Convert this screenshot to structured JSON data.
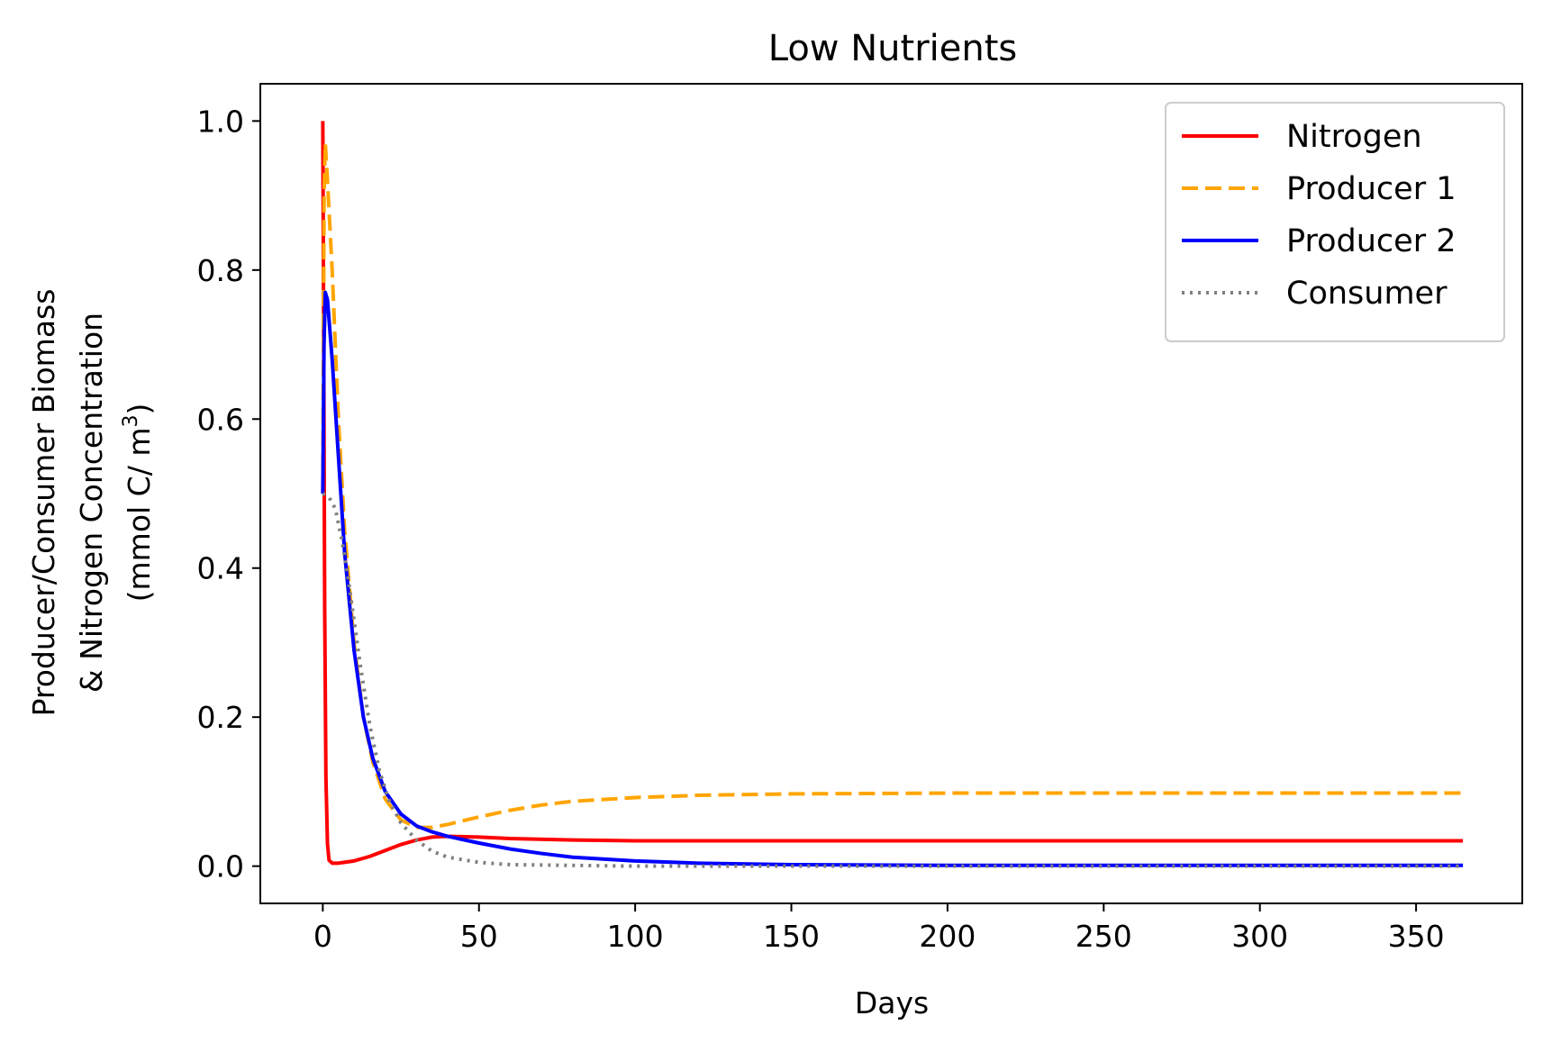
{
  "chart_data": {
    "type": "line",
    "title": "Low Nutrients",
    "xlabel": "Days",
    "ylabel_lines": [
      "Producer/Consumer Biomass",
      "& Nitrogen Concentration"
    ],
    "ylabel_unit": {
      "prefix": "(mmol C/ m",
      "sup": "3",
      "suffix": ")"
    },
    "xlim": [
      -20,
      384
    ],
    "ylim": [
      -0.05,
      1.05
    ],
    "xticks": [
      0,
      50,
      100,
      150,
      200,
      250,
      300,
      350
    ],
    "xtick_labels": [
      "0",
      "50",
      "100",
      "150",
      "200",
      "250",
      "300",
      "350"
    ],
    "yticks": [
      0.0,
      0.2,
      0.4,
      0.6,
      0.8,
      1.0
    ],
    "ytick_labels": [
      "0.0",
      "0.2",
      "0.4",
      "0.6",
      "0.8",
      "1.0"
    ],
    "grid": false,
    "legend_position": "top-right",
    "series": [
      {
        "name": "Nitrogen",
        "color": "#ff0000",
        "style": "solid",
        "points": [
          [
            0,
            1.0
          ],
          [
            0.3,
            0.7
          ],
          [
            0.6,
            0.35
          ],
          [
            1,
            0.12
          ],
          [
            1.5,
            0.03
          ],
          [
            2,
            0.008
          ],
          [
            3,
            0.004
          ],
          [
            5,
            0.004
          ],
          [
            10,
            0.007
          ],
          [
            15,
            0.013
          ],
          [
            20,
            0.021
          ],
          [
            25,
            0.029
          ],
          [
            30,
            0.035
          ],
          [
            35,
            0.039
          ],
          [
            40,
            0.04
          ],
          [
            50,
            0.039
          ],
          [
            60,
            0.037
          ],
          [
            80,
            0.035
          ],
          [
            100,
            0.034
          ],
          [
            150,
            0.034
          ],
          [
            200,
            0.034
          ],
          [
            250,
            0.034
          ],
          [
            300,
            0.034
          ],
          [
            365,
            0.034
          ]
        ]
      },
      {
        "name": "Producer 1",
        "color": "#ffa500",
        "style": "dashed",
        "points": [
          [
            0,
            0.5
          ],
          [
            0.4,
            0.9
          ],
          [
            0.8,
            0.97
          ],
          [
            1.5,
            0.92
          ],
          [
            3,
            0.8
          ],
          [
            5,
            0.6
          ],
          [
            7,
            0.45
          ],
          [
            10,
            0.3
          ],
          [
            13,
            0.2
          ],
          [
            16,
            0.14
          ],
          [
            20,
            0.09
          ],
          [
            25,
            0.062
          ],
          [
            30,
            0.052
          ],
          [
            35,
            0.052
          ],
          [
            40,
            0.056
          ],
          [
            50,
            0.066
          ],
          [
            60,
            0.075
          ],
          [
            70,
            0.082
          ],
          [
            80,
            0.087
          ],
          [
            100,
            0.092
          ],
          [
            120,
            0.095
          ],
          [
            150,
            0.097
          ],
          [
            200,
            0.098
          ],
          [
            250,
            0.098
          ],
          [
            300,
            0.098
          ],
          [
            365,
            0.098
          ]
        ]
      },
      {
        "name": "Producer 2",
        "color": "#0000ff",
        "style": "solid",
        "points": [
          [
            0,
            0.5
          ],
          [
            0.4,
            0.7
          ],
          [
            0.8,
            0.77
          ],
          [
            1.5,
            0.76
          ],
          [
            3,
            0.68
          ],
          [
            5,
            0.55
          ],
          [
            7,
            0.42
          ],
          [
            10,
            0.29
          ],
          [
            13,
            0.2
          ],
          [
            16,
            0.145
          ],
          [
            20,
            0.1
          ],
          [
            25,
            0.07
          ],
          [
            30,
            0.054
          ],
          [
            35,
            0.046
          ],
          [
            40,
            0.04
          ],
          [
            50,
            0.031
          ],
          [
            60,
            0.023
          ],
          [
            70,
            0.017
          ],
          [
            80,
            0.012
          ],
          [
            100,
            0.007
          ],
          [
            120,
            0.004
          ],
          [
            150,
            0.002
          ],
          [
            200,
            0.001
          ],
          [
            250,
            0.001
          ],
          [
            300,
            0.001
          ],
          [
            365,
            0.001
          ]
        ]
      },
      {
        "name": "Consumer",
        "color": "#808080",
        "style": "dotted",
        "points": [
          [
            0,
            0.5
          ],
          [
            2,
            0.495
          ],
          [
            4,
            0.48
          ],
          [
            6,
            0.44
          ],
          [
            8,
            0.39
          ],
          [
            10,
            0.33
          ],
          [
            12,
            0.27
          ],
          [
            15,
            0.19
          ],
          [
            18,
            0.13
          ],
          [
            21,
            0.09
          ],
          [
            25,
            0.058
          ],
          [
            30,
            0.035
          ],
          [
            35,
            0.02
          ],
          [
            40,
            0.012
          ],
          [
            50,
            0.005
          ],
          [
            60,
            0.002
          ],
          [
            80,
            0.001
          ],
          [
            100,
            0.0
          ],
          [
            150,
            0.0
          ],
          [
            200,
            0.0
          ],
          [
            365,
            0.0
          ]
        ]
      }
    ]
  }
}
